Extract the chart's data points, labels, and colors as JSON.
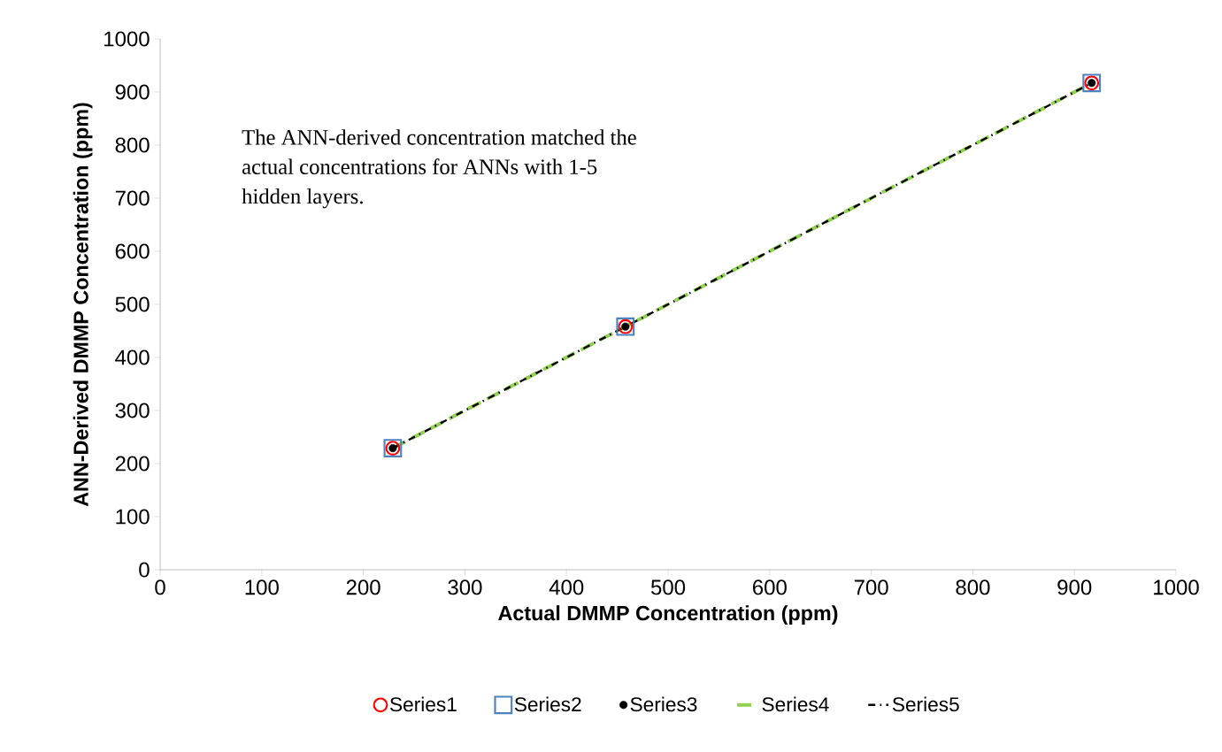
{
  "chart_data": {
    "type": "scatter",
    "xlabel": "Actual DMMP Concentration (ppm)",
    "ylabel": "ANN-Derived DMMP Concentration (ppm)",
    "annotations": [
      "The ANN-derived concentration matched the actual concentrations for ANNs with 1-5 hidden layers."
    ],
    "x": [
      229,
      458,
      917
    ],
    "series": [
      {
        "name": "Series1",
        "color": "#ff0000",
        "marker": "circle",
        "values": [
          229,
          458,
          917
        ]
      },
      {
        "name": "Series2",
        "color": "#4f81bd",
        "marker": "square",
        "values": [
          229,
          458,
          917
        ]
      },
      {
        "name": "Series3",
        "color": "#000000",
        "marker": "dot",
        "values": [
          229,
          458,
          917
        ]
      },
      {
        "name": "Series4",
        "type": "line",
        "color": "#92d050",
        "marker": "none",
        "line_style": "dashed",
        "values": [
          229,
          458,
          917
        ]
      },
      {
        "name": "Series5",
        "type": "line",
        "color": "#000000",
        "marker": "none",
        "line_style": "dashdot",
        "values": [
          229,
          458,
          917
        ]
      }
    ],
    "xlim": [
      0,
      1000
    ],
    "ylim": [
      0,
      1000
    ],
    "xticks": [
      0,
      100,
      200,
      300,
      400,
      500,
      600,
      700,
      800,
      900,
      1000
    ],
    "yticks": [
      0,
      100,
      200,
      300,
      400,
      500,
      600,
      700,
      800,
      900,
      1000
    ],
    "grid": false,
    "legend": "bottom"
  }
}
